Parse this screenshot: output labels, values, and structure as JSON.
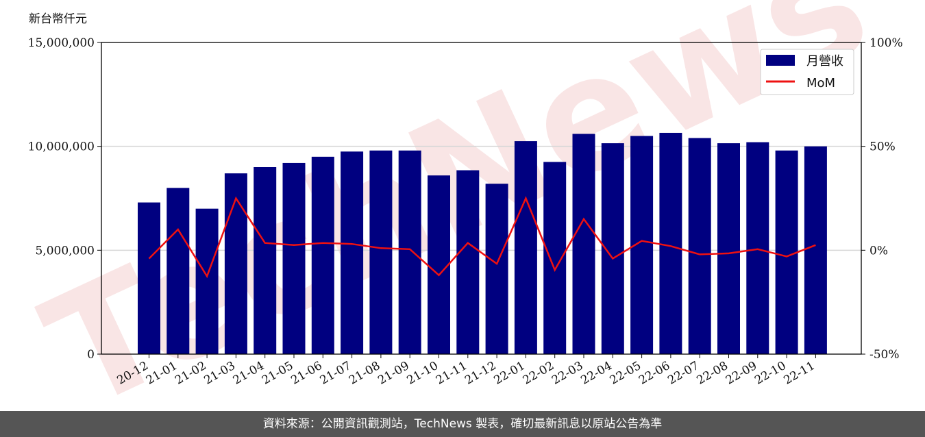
{
  "y_unit_label": "新台幣仟元",
  "footer_text": "資料來源：公開資訊觀測站，TechNews 製表，確切最新訊息以原站公告為準",
  "watermark_text": "TechNews",
  "colors": {
    "bar": "#000080",
    "line": "#ee1111",
    "footer_bg": "#555555"
  },
  "legend_position": "top-right",
  "chart_data": {
    "type": "bar",
    "categories": [
      "20-12",
      "21-01",
      "21-02",
      "21-03",
      "21-04",
      "21-05",
      "21-06",
      "21-07",
      "21-08",
      "21-09",
      "21-10",
      "21-11",
      "21-12",
      "22-01",
      "22-02",
      "22-03",
      "22-04",
      "22-05",
      "22-06",
      "22-07",
      "22-08",
      "22-09",
      "22-10",
      "22-11"
    ],
    "series": [
      {
        "name": "月營收",
        "type": "bar",
        "axis": "left",
        "values": [
          7300000,
          8000000,
          7000000,
          8700000,
          9000000,
          9200000,
          9500000,
          9750000,
          9800000,
          9800000,
          8600000,
          8850000,
          8200000,
          10250000,
          9250000,
          10600000,
          10150000,
          10500000,
          10650000,
          10400000,
          10150000,
          10200000,
          9800000,
          10000000
        ]
      },
      {
        "name": "MoM",
        "type": "line",
        "axis": "right",
        "values": [
          -4,
          10,
          -12.5,
          25,
          3.5,
          2.5,
          3.5,
          3,
          1,
          0.5,
          -12,
          3.5,
          -6.5,
          25,
          -9.5,
          15,
          -4,
          4.5,
          2,
          -2,
          -1.5,
          0.5,
          -3,
          2.5
        ]
      }
    ],
    "ylim_left": [
      0,
      15000000
    ],
    "yticks_left": [
      "0",
      "5,000,000",
      "10,000,000",
      "15,000,000"
    ],
    "ylim_right": [
      -50,
      100
    ],
    "yticks_right": [
      "-50%",
      "0%",
      "50%",
      "100%"
    ],
    "grid": "horizontal"
  }
}
